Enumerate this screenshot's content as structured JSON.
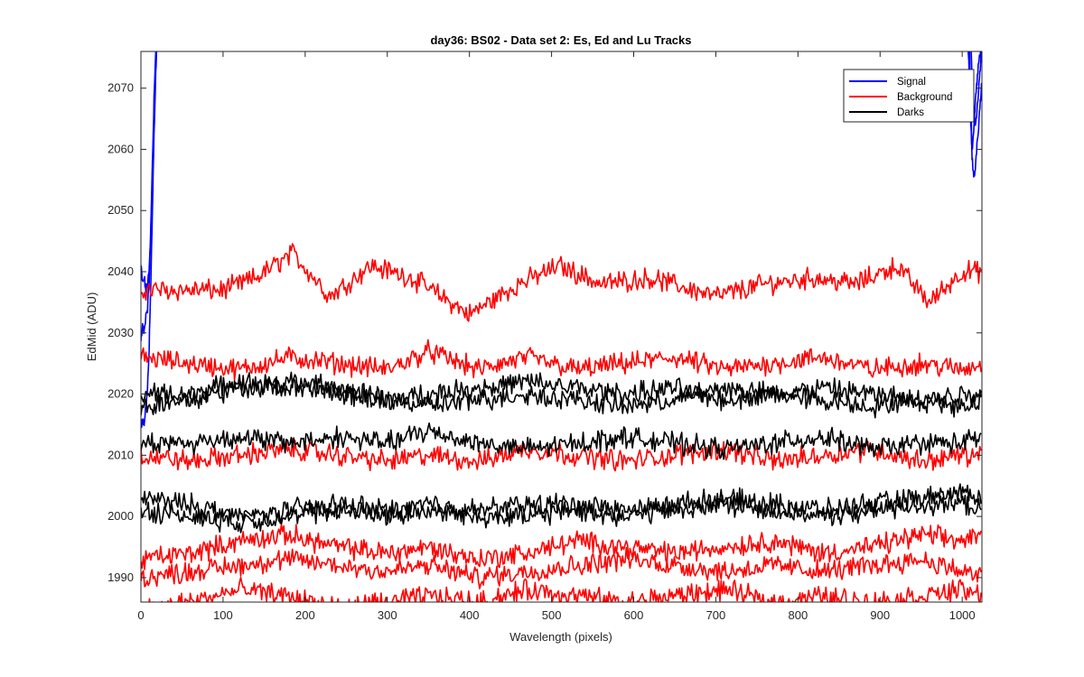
{
  "chart_data": {
    "type": "line",
    "title": "day36: BS02 - Data set 2: Es, Ed and Lu Tracks",
    "xlabel": "Wavelength (pixels)",
    "ylabel": "EdMid (ADU)",
    "xlim": [
      0,
      1024
    ],
    "ylim": [
      1986,
      2076
    ],
    "xticks": [
      0,
      100,
      200,
      300,
      400,
      500,
      600,
      700,
      800,
      900,
      1000
    ],
    "yticks": [
      1990,
      2000,
      2010,
      2020,
      2030,
      2040,
      2050,
      2060,
      2070
    ],
    "grid": false,
    "legend_position": "top-right",
    "legend": [
      {
        "name": "Signal",
        "color": "#0000ff"
      },
      {
        "name": "Background",
        "color": "#ff0000"
      },
      {
        "name": "Darks",
        "color": "#000000"
      }
    ],
    "series": [
      {
        "name": "Signal",
        "color": "#0000ff",
        "x": [
          0,
          2,
          4,
          6,
          8,
          10,
          12,
          14,
          16,
          18,
          20
        ],
        "y": [
          2041,
          2038,
          2039,
          2037,
          2038,
          2040,
          2046,
          2056,
          2066,
          2074,
          2080
        ]
      },
      {
        "name": "Signal",
        "color": "#0000ff",
        "x": [
          0,
          2,
          4,
          6,
          8,
          10,
          12,
          14,
          16,
          18,
          20
        ],
        "y": [
          2029,
          2031,
          2030,
          2033,
          2034,
          2038,
          2047,
          2058,
          2068,
          2076,
          2082
        ]
      },
      {
        "name": "Signal",
        "color": "#0000ff",
        "x": [
          0,
          2,
          4,
          6,
          8,
          10,
          12,
          14,
          16,
          18,
          20
        ],
        "y": [
          2014,
          2016,
          2015,
          2018,
          2021,
          2027,
          2038,
          2050,
          2062,
          2072,
          2080
        ]
      },
      {
        "name": "Signal",
        "color": "#0000ff",
        "x": [
          1006,
          1008,
          1010,
          1012,
          1014,
          1016,
          1018,
          1020,
          1022,
          1024
        ],
        "y": [
          2080,
          2074,
          2066,
          2060,
          2063,
          2068,
          2071,
          2074,
          2076,
          2078
        ]
      },
      {
        "name": "Signal",
        "color": "#0000ff",
        "x": [
          1008,
          1010,
          1012,
          1014,
          1016,
          1018,
          1020,
          1022,
          1024
        ],
        "y": [
          2080,
          2070,
          2059,
          2055,
          2057,
          2061,
          2064,
          2068,
          2071
        ]
      },
      {
        "name": "Signal",
        "color": "#0000ff",
        "x": [
          1010,
          1012,
          1014,
          1016,
          1018,
          1020,
          1022,
          1024
        ],
        "y": [
          2080,
          2072,
          2067,
          2064,
          2066,
          2070,
          2073,
          2076
        ]
      },
      {
        "name": "Background",
        "color": "#ff0000",
        "x": [
          0,
          50,
          100,
          140,
          185,
          230,
          280,
          330,
          400,
          460,
          510,
          560,
          620,
          700,
          760,
          820,
          870,
          920,
          960,
          1000,
          1024
        ],
        "y": [
          2037,
          2037,
          2037,
          2039,
          2043,
          2036,
          2041,
          2039,
          2033,
          2038,
          2041,
          2038,
          2039,
          2036,
          2038,
          2039,
          2038,
          2041,
          2035,
          2040,
          2040
        ]
      },
      {
        "name": "Background",
        "color": "#ff0000",
        "x": [
          0,
          60,
          120,
          180,
          240,
          300,
          350,
          410,
          470,
          530,
          590,
          650,
          710,
          770,
          830,
          890,
          950,
          1000,
          1024
        ],
        "y": [
          2026,
          2025,
          2024,
          2026,
          2025,
          2024,
          2027,
          2024,
          2026,
          2024,
          2025,
          2026,
          2024,
          2025,
          2026,
          2024,
          2025,
          2024,
          2025
        ]
      },
      {
        "name": "Background",
        "color": "#ff0000",
        "x": [
          0,
          60,
          120,
          180,
          240,
          300,
          350,
          410,
          470,
          530,
          590,
          650,
          710,
          770,
          830,
          890,
          950,
          1000,
          1024
        ],
        "y": [
          2010,
          2009,
          2010,
          2011,
          2010,
          2009,
          2010,
          2009,
          2011,
          2010,
          2009,
          2010,
          2011,
          2009,
          2010,
          2011,
          2009,
          2010,
          2010
        ]
      },
      {
        "name": "Background",
        "color": "#ff0000",
        "x": [
          0,
          60,
          120,
          180,
          240,
          300,
          350,
          410,
          470,
          530,
          590,
          650,
          710,
          770,
          830,
          890,
          950,
          1000,
          1024
        ],
        "y": [
          1993,
          1994,
          1996,
          1997,
          1995,
          1994,
          1995,
          1993,
          1994,
          1996,
          1995,
          1994,
          1995,
          1996,
          1994,
          1995,
          1997,
          1996,
          1997
        ]
      },
      {
        "name": "Background",
        "color": "#ff0000",
        "x": [
          0,
          60,
          120,
          180,
          240,
          300,
          350,
          410,
          470,
          530,
          590,
          650,
          710,
          770,
          830,
          890,
          950,
          1000,
          1024
        ],
        "y": [
          1990,
          1991,
          1992,
          1993,
          1992,
          1991,
          1992,
          1990,
          1991,
          1992,
          1993,
          1992,
          1991,
          1992,
          1991,
          1992,
          1993,
          1991,
          1990
        ]
      },
      {
        "name": "Background",
        "color": "#ff0000",
        "x": [
          0,
          60,
          120,
          180,
          240,
          300,
          350,
          410,
          470,
          530,
          590,
          650,
          710,
          770,
          830,
          890,
          950,
          1000,
          1024
        ],
        "y": [
          1985,
          1986,
          1988,
          1987,
          1985,
          1986,
          1987,
          1986,
          1988,
          1987,
          1986,
          1987,
          1988,
          1986,
          1987,
          1986,
          1987,
          1988,
          1987
        ]
      },
      {
        "name": "Darks",
        "color": "#000000",
        "x": [
          0,
          60,
          120,
          180,
          240,
          300,
          350,
          410,
          470,
          530,
          590,
          650,
          710,
          770,
          830,
          890,
          950,
          1000,
          1024
        ],
        "y": [
          2020,
          2020,
          2022,
          2021,
          2020,
          2019,
          2020,
          2021,
          2022,
          2021,
          2020,
          2021,
          2019,
          2020,
          2021,
          2020,
          2019,
          2020,
          2020
        ]
      },
      {
        "name": "Darks",
        "color": "#000000",
        "x": [
          0,
          60,
          120,
          180,
          240,
          300,
          350,
          410,
          470,
          530,
          590,
          650,
          710,
          770,
          830,
          890,
          950,
          1000,
          1024
        ],
        "y": [
          2018,
          2019,
          2021,
          2022,
          2021,
          2019,
          2018,
          2019,
          2020,
          2019,
          2018,
          2019,
          2021,
          2020,
          2019,
          2018,
          2019,
          2018,
          2019
        ]
      },
      {
        "name": "Darks",
        "color": "#000000",
        "x": [
          0,
          60,
          120,
          180,
          240,
          300,
          350,
          410,
          470,
          530,
          590,
          650,
          710,
          770,
          830,
          890,
          950,
          1000,
          1024
        ],
        "y": [
          2012,
          2012,
          2013,
          2012,
          2013,
          2012,
          2014,
          2012,
          2011,
          2012,
          2013,
          2012,
          2011,
          2012,
          2013,
          2011,
          2012,
          2012,
          2013
        ]
      },
      {
        "name": "Darks",
        "color": "#000000",
        "x": [
          0,
          60,
          120,
          180,
          240,
          300,
          350,
          410,
          470,
          530,
          590,
          650,
          710,
          770,
          830,
          890,
          950,
          1000,
          1024
        ],
        "y": [
          2003,
          2002,
          2000,
          2001,
          2002,
          2001,
          2002,
          2001,
          2002,
          2002,
          2001,
          2002,
          2003,
          2002,
          2001,
          2002,
          2003,
          2004,
          2003
        ]
      },
      {
        "name": "Darks",
        "color": "#000000",
        "x": [
          0,
          60,
          120,
          180,
          240,
          300,
          350,
          410,
          470,
          530,
          590,
          650,
          710,
          770,
          830,
          890,
          950,
          1000,
          1024
        ],
        "y": [
          2001,
          2000,
          1999,
          2000,
          2001,
          2000,
          2001,
          2000,
          2000,
          2001,
          2000,
          2001,
          2002,
          2001,
          2000,
          2001,
          2002,
          2002,
          2001
        ]
      }
    ]
  }
}
